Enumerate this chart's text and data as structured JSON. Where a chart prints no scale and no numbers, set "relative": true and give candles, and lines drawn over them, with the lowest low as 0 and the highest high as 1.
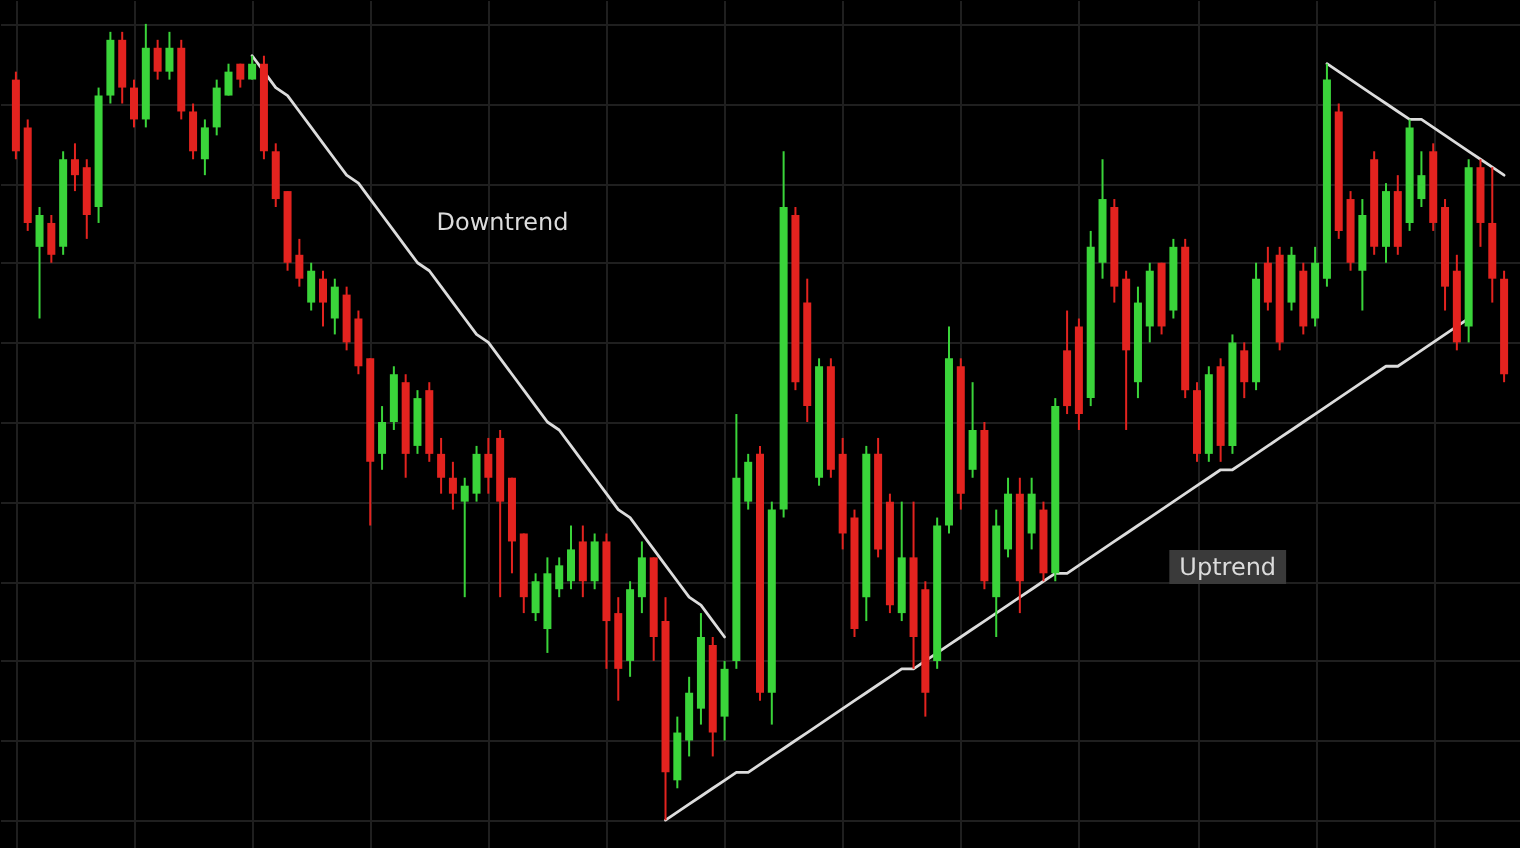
{
  "chart_data": {
    "type": "candlestick",
    "relative": true,
    "grid": true,
    "categories": [
      null,
      null,
      null,
      null,
      null,
      null,
      null,
      null,
      null,
      null,
      null,
      null,
      null,
      null,
      null,
      null,
      null,
      null,
      null,
      null,
      null,
      null,
      null,
      null,
      null,
      null,
      null,
      null,
      null,
      null,
      null,
      null,
      null,
      null,
      null,
      null,
      null,
      null,
      null,
      null,
      null,
      null,
      null,
      null,
      null,
      null,
      null,
      null,
      null,
      null,
      null,
      null,
      null,
      null,
      null,
      null,
      null,
      null,
      null,
      null,
      null,
      null,
      null,
      null,
      null,
      null,
      null,
      null,
      null,
      null,
      null,
      null,
      null,
      null,
      null,
      null,
      null,
      null,
      null,
      null,
      null,
      null,
      null,
      null,
      null,
      null,
      null,
      null,
      null,
      null,
      null,
      null,
      null,
      null,
      null,
      null,
      null,
      null,
      null,
      null,
      null,
      null,
      null,
      null,
      null,
      null,
      null,
      null,
      null,
      null,
      null,
      null,
      null,
      null,
      null,
      null,
      null,
      null,
      null,
      null,
      null,
      null,
      null,
      null,
      null,
      null,
      null
    ],
    "ohlc": [
      [
        0.93,
        0.94,
        0.83,
        0.84
      ],
      [
        0.87,
        0.88,
        0.74,
        0.75
      ],
      [
        0.72,
        0.77,
        0.63,
        0.76
      ],
      [
        0.75,
        0.76,
        0.7,
        0.71
      ],
      [
        0.72,
        0.84,
        0.71,
        0.83
      ],
      [
        0.83,
        0.85,
        0.79,
        0.81
      ],
      [
        0.82,
        0.83,
        0.73,
        0.76
      ],
      [
        0.77,
        0.92,
        0.75,
        0.91
      ],
      [
        0.91,
        0.99,
        0.9,
        0.98
      ],
      [
        0.98,
        0.99,
        0.9,
        0.92
      ],
      [
        0.92,
        0.93,
        0.87,
        0.88
      ],
      [
        0.88,
        1.0,
        0.87,
        0.97
      ],
      [
        0.97,
        0.98,
        0.93,
        0.94
      ],
      [
        0.94,
        0.99,
        0.93,
        0.97
      ],
      [
        0.97,
        0.98,
        0.88,
        0.89
      ],
      [
        0.89,
        0.9,
        0.83,
        0.84
      ],
      [
        0.83,
        0.88,
        0.81,
        0.87
      ],
      [
        0.87,
        0.93,
        0.86,
        0.92
      ],
      [
        0.91,
        0.95,
        0.91,
        0.94
      ],
      [
        0.95,
        0.95,
        0.92,
        0.93
      ],
      [
        0.93,
        0.96,
        0.93,
        0.95
      ],
      [
        0.95,
        0.96,
        0.83,
        0.84
      ],
      [
        0.84,
        0.85,
        0.77,
        0.78
      ],
      [
        0.79,
        0.79,
        0.69,
        0.7
      ],
      [
        0.71,
        0.73,
        0.67,
        0.68
      ],
      [
        0.65,
        0.7,
        0.64,
        0.69
      ],
      [
        0.68,
        0.69,
        0.62,
        0.65
      ],
      [
        0.63,
        0.68,
        0.61,
        0.67
      ],
      [
        0.66,
        0.67,
        0.59,
        0.6
      ],
      [
        0.63,
        0.64,
        0.56,
        0.57
      ],
      [
        0.58,
        0.58,
        0.37,
        0.45
      ],
      [
        0.46,
        0.52,
        0.44,
        0.5
      ],
      [
        0.5,
        0.57,
        0.49,
        0.56
      ],
      [
        0.55,
        0.56,
        0.43,
        0.46
      ],
      [
        0.47,
        0.54,
        0.46,
        0.53
      ],
      [
        0.54,
        0.55,
        0.45,
        0.46
      ],
      [
        0.46,
        0.48,
        0.41,
        0.43
      ],
      [
        0.43,
        0.45,
        0.39,
        0.41
      ],
      [
        0.4,
        0.43,
        0.28,
        0.42
      ],
      [
        0.41,
        0.47,
        0.4,
        0.46
      ],
      [
        0.46,
        0.48,
        0.41,
        0.43
      ],
      [
        0.48,
        0.49,
        0.28,
        0.4
      ],
      [
        0.43,
        0.43,
        0.31,
        0.35
      ],
      [
        0.36,
        0.36,
        0.26,
        0.28
      ],
      [
        0.26,
        0.31,
        0.25,
        0.3
      ],
      [
        0.24,
        0.33,
        0.21,
        0.31
      ],
      [
        0.29,
        0.33,
        0.28,
        0.32
      ],
      [
        0.3,
        0.37,
        0.29,
        0.34
      ],
      [
        0.35,
        0.37,
        0.28,
        0.3
      ],
      [
        0.3,
        0.36,
        0.29,
        0.35
      ],
      [
        0.35,
        0.36,
        0.19,
        0.25
      ],
      [
        0.26,
        0.28,
        0.15,
        0.19
      ],
      [
        0.2,
        0.3,
        0.18,
        0.29
      ],
      [
        0.28,
        0.35,
        0.26,
        0.33
      ],
      [
        0.33,
        0.33,
        0.2,
        0.23
      ],
      [
        0.25,
        0.28,
        0,
        0.06
      ],
      [
        0.05,
        0.13,
        0.04,
        0.11
      ],
      [
        0.1,
        0.18,
        0.08,
        0.16
      ],
      [
        0.14,
        0.26,
        0.12,
        0.23
      ],
      [
        0.22,
        0.23,
        0.08,
        0.11
      ],
      [
        0.13,
        0.2,
        0.1,
        0.19
      ],
      [
        0.2,
        0.51,
        0.19,
        0.43
      ],
      [
        0.4,
        0.46,
        0.39,
        0.45
      ],
      [
        0.46,
        0.47,
        0.15,
        0.16
      ],
      [
        0.16,
        0.4,
        0.12,
        0.39
      ],
      [
        0.39,
        0.84,
        0.38,
        0.77
      ],
      [
        0.76,
        0.77,
        0.54,
        0.55
      ],
      [
        0.65,
        0.68,
        0.5,
        0.52
      ],
      [
        0.43,
        0.58,
        0.42,
        0.57
      ],
      [
        0.57,
        0.58,
        0.43,
        0.44
      ],
      [
        0.46,
        0.48,
        0.34,
        0.36
      ],
      [
        0.38,
        0.39,
        0.23,
        0.24
      ],
      [
        0.28,
        0.47,
        0.25,
        0.46
      ],
      [
        0.46,
        0.48,
        0.33,
        0.34
      ],
      [
        0.4,
        0.41,
        0.26,
        0.27
      ],
      [
        0.26,
        0.4,
        0.25,
        0.33
      ],
      [
        0.33,
        0.4,
        0.19,
        0.23
      ],
      [
        0.29,
        0.3,
        0.13,
        0.16
      ],
      [
        0.2,
        0.38,
        0.19,
        0.37
      ],
      [
        0.37,
        0.62,
        0.36,
        0.58
      ],
      [
        0.57,
        0.58,
        0.39,
        0.41
      ],
      [
        0.44,
        0.55,
        0.43,
        0.49
      ],
      [
        0.49,
        0.5,
        0.29,
        0.3
      ],
      [
        0.28,
        0.39,
        0.23,
        0.37
      ],
      [
        0.34,
        0.43,
        0.33,
        0.41
      ],
      [
        0.41,
        0.43,
        0.26,
        0.3
      ],
      [
        0.36,
        0.43,
        0.34,
        0.41
      ],
      [
        0.39,
        0.4,
        0.3,
        0.31
      ],
      [
        0.31,
        0.53,
        0.3,
        0.52
      ],
      [
        0.59,
        0.64,
        0.51,
        0.52
      ],
      [
        0.62,
        0.63,
        0.49,
        0.51
      ],
      [
        0.53,
        0.74,
        0.52,
        0.72
      ],
      [
        0.7,
        0.83,
        0.68,
        0.78
      ],
      [
        0.77,
        0.78,
        0.65,
        0.67
      ],
      [
        0.68,
        0.69,
        0.49,
        0.59
      ],
      [
        0.55,
        0.67,
        0.53,
        0.65
      ],
      [
        0.62,
        0.7,
        0.6,
        0.69
      ],
      [
        0.7,
        0.7,
        0.61,
        0.62
      ],
      [
        0.64,
        0.73,
        0.63,
        0.72
      ],
      [
        0.72,
        0.73,
        0.53,
        0.54
      ],
      [
        0.54,
        0.55,
        0.45,
        0.46
      ],
      [
        0.46,
        0.57,
        0.45,
        0.56
      ],
      [
        0.57,
        0.58,
        0.45,
        0.47
      ],
      [
        0.47,
        0.61,
        0.46,
        0.6
      ],
      [
        0.59,
        0.6,
        0.53,
        0.55
      ],
      [
        0.55,
        0.7,
        0.54,
        0.68
      ],
      [
        0.7,
        0.72,
        0.64,
        0.65
      ],
      [
        0.71,
        0.72,
        0.59,
        0.6
      ],
      [
        0.65,
        0.72,
        0.64,
        0.71
      ],
      [
        0.69,
        0.7,
        0.61,
        0.62
      ],
      [
        0.63,
        0.72,
        0.62,
        0.7
      ],
      [
        0.68,
        0.95,
        0.67,
        0.93
      ],
      [
        0.89,
        0.9,
        0.73,
        0.74
      ],
      [
        0.78,
        0.79,
        0.69,
        0.7
      ],
      [
        0.69,
        0.78,
        0.64,
        0.76
      ],
      [
        0.83,
        0.84,
        0.71,
        0.72
      ],
      [
        0.72,
        0.8,
        0.7,
        0.79
      ],
      [
        0.79,
        0.81,
        0.71,
        0.72
      ],
      [
        0.75,
        0.88,
        0.74,
        0.87
      ],
      [
        0.78,
        0.84,
        0.77,
        0.81
      ],
      [
        0.84,
        0.85,
        0.74,
        0.75
      ],
      [
        0.77,
        0.78,
        0.64,
        0.67
      ],
      [
        0.69,
        0.71,
        0.59,
        0.6
      ],
      [
        0.62,
        0.83,
        0.6,
        0.82
      ],
      [
        0.82,
        0.83,
        0.72,
        0.75
      ],
      [
        0.75,
        0.82,
        0.65,
        0.68
      ],
      [
        0.68,
        0.69,
        0.55,
        0.56
      ]
    ],
    "colors": [
      "#e3231f",
      "#e3231f",
      "#3ad43a",
      "#e3231f",
      "#3ad43a",
      "#e3231f",
      "#e3231f",
      "#3ad43a",
      "#3ad43a",
      "#e3231f",
      "#e3231f",
      "#3ad43a",
      "#e3231f",
      "#3ad43a",
      "#e3231f",
      "#e3231f",
      "#3ad43a",
      "#3ad43a",
      "#3ad43a",
      "#e3231f",
      "#3ad43a",
      "#e3231f",
      "#e3231f",
      "#e3231f",
      "#e3231f",
      "#3ad43a",
      "#e3231f",
      "#3ad43a",
      "#e3231f",
      "#e3231f",
      "#e3231f",
      "#3ad43a",
      "#3ad43a",
      "#e3231f",
      "#3ad43a",
      "#e3231f",
      "#e3231f",
      "#e3231f",
      "#3ad43a",
      "#3ad43a",
      "#e3231f",
      "#e3231f",
      "#e3231f",
      "#e3231f",
      "#3ad43a",
      "#3ad43a",
      "#3ad43a",
      "#3ad43a",
      "#e3231f",
      "#3ad43a",
      "#e3231f",
      "#e3231f",
      "#3ad43a",
      "#3ad43a",
      "#e3231f",
      "#e3231f",
      "#3ad43a",
      "#3ad43a",
      "#3ad43a",
      "#e3231f",
      "#3ad43a",
      "#3ad43a",
      "#3ad43a",
      "#e3231f",
      "#3ad43a",
      "#3ad43a",
      "#e3231f",
      "#e3231f",
      "#3ad43a",
      "#e3231f",
      "#e3231f",
      "#e3231f",
      "#3ad43a",
      "#e3231f",
      "#e3231f",
      "#3ad43a",
      "#e3231f",
      "#e3231f",
      "#3ad43a",
      "#3ad43a",
      "#e3231f",
      "#3ad43a",
      "#e3231f",
      "#3ad43a",
      "#3ad43a",
      "#e3231f",
      "#3ad43a",
      "#e3231f",
      "#3ad43a",
      "#e3231f",
      "#e3231f",
      "#3ad43a",
      "#3ad43a",
      "#e3231f",
      "#e3231f",
      "#3ad43a",
      "#3ad43a",
      "#e3231f",
      "#3ad43a",
      "#e3231f",
      "#e3231f",
      "#3ad43a",
      "#e3231f",
      "#3ad43a",
      "#e3231f",
      "#3ad43a",
      "#e3231f",
      "#e3231f",
      "#3ad43a",
      "#e3231f",
      "#3ad43a",
      "#3ad43a",
      "#e3231f",
      "#e3231f",
      "#3ad43a",
      "#e3231f",
      "#3ad43a",
      "#e3231f",
      "#3ad43a",
      "#3ad43a",
      "#e3231f",
      "#e3231f",
      "#e3231f",
      "#3ad43a",
      "#e3231f",
      "#e3231f",
      "#e3231f"
    ],
    "series": [
      {
        "type": "line",
        "name": "Downtrend",
        "color": "#dcdcdc",
        "values": [
          null,
          null,
          null,
          null,
          null,
          null,
          null,
          null,
          null,
          null,
          null,
          null,
          null,
          null,
          null,
          null,
          null,
          null,
          null,
          null,
          0.96,
          0.94,
          0.92,
          0.91,
          0.89,
          0.87,
          0.85,
          0.83,
          0.81,
          0.8,
          0.78,
          0.76,
          0.74,
          0.72,
          0.7,
          0.69,
          0.67,
          0.65,
          0.63,
          0.61,
          0.6,
          0.58,
          0.56,
          0.54,
          0.52,
          0.5,
          0.49,
          0.47,
          0.45,
          0.43,
          0.41,
          0.39,
          0.38,
          0.36,
          0.34,
          0.32,
          0.3,
          0.28,
          0.27,
          0.25,
          0.23,
          null,
          null,
          null,
          null,
          null,
          null,
          null,
          null,
          null,
          null,
          null,
          null,
          null,
          null,
          null,
          null,
          null,
          null,
          null,
          null,
          null,
          null,
          null,
          null,
          null,
          null,
          null,
          null,
          null,
          null,
          null,
          null,
          null,
          null,
          null,
          null,
          null,
          null,
          null,
          null,
          null,
          null,
          null,
          null,
          null,
          null,
          null,
          null,
          null,
          null,
          null,
          null,
          null,
          null,
          null,
          null,
          null,
          null,
          null,
          null,
          null,
          null,
          null,
          null,
          null,
          null
        ]
      },
      {
        "type": "line",
        "name": "Uptrend",
        "color": "#dcdcdc",
        "values": [
          null,
          null,
          null,
          null,
          null,
          null,
          null,
          null,
          null,
          null,
          null,
          null,
          null,
          null,
          null,
          null,
          null,
          null,
          null,
          null,
          null,
          null,
          null,
          null,
          null,
          null,
          null,
          null,
          null,
          null,
          null,
          null,
          null,
          null,
          null,
          null,
          null,
          null,
          null,
          null,
          null,
          null,
          null,
          null,
          null,
          null,
          null,
          null,
          null,
          null,
          null,
          null,
          null,
          null,
          null,
          0,
          0.01,
          0.02,
          0.03,
          0.04,
          0.05,
          0.06,
          0.06,
          0.07,
          0.08,
          0.09,
          0.1,
          0.11,
          0.12,
          0.13,
          0.14,
          0.15,
          0.16,
          0.17,
          0.18,
          0.19,
          0.19,
          0.2,
          0.21,
          0.22,
          0.23,
          0.24,
          0.25,
          0.26,
          0.27,
          0.28,
          0.29,
          0.3,
          0.31,
          0.31,
          0.32,
          0.33,
          0.34,
          0.35,
          0.36,
          0.37,
          0.38,
          0.39,
          0.4,
          0.41,
          0.42,
          0.43,
          0.44,
          0.44,
          0.45,
          0.46,
          0.47,
          0.48,
          0.49,
          0.5,
          0.51,
          0.52,
          0.53,
          0.54,
          0.55,
          0.56,
          0.57,
          0.57,
          0.58,
          0.59,
          0.6,
          0.61,
          0.62,
          0.63,
          null,
          null,
          null
        ]
      },
      {
        "type": "line",
        "color": "#dcdcdc",
        "values": [
          null,
          null,
          null,
          null,
          null,
          null,
          null,
          null,
          null,
          null,
          null,
          null,
          null,
          null,
          null,
          null,
          null,
          null,
          null,
          null,
          null,
          null,
          null,
          null,
          null,
          null,
          null,
          null,
          null,
          null,
          null,
          null,
          null,
          null,
          null,
          null,
          null,
          null,
          null,
          null,
          null,
          null,
          null,
          null,
          null,
          null,
          null,
          null,
          null,
          null,
          null,
          null,
          null,
          null,
          null,
          null,
          null,
          null,
          null,
          null,
          null,
          null,
          null,
          null,
          null,
          null,
          null,
          null,
          null,
          null,
          null,
          null,
          null,
          null,
          null,
          null,
          null,
          null,
          null,
          null,
          null,
          null,
          null,
          null,
          null,
          null,
          null,
          null,
          null,
          null,
          null,
          null,
          null,
          null,
          null,
          null,
          null,
          null,
          null,
          null,
          null,
          null,
          null,
          null,
          null,
          null,
          null,
          null,
          null,
          null,
          null,
          0.95,
          0.94,
          0.93,
          0.92,
          0.91,
          0.9,
          0.89,
          0.88,
          0.88,
          0.87,
          0.86,
          0.85,
          0.84,
          0.83,
          0.82,
          0.81
        ]
      }
    ]
  }
}
